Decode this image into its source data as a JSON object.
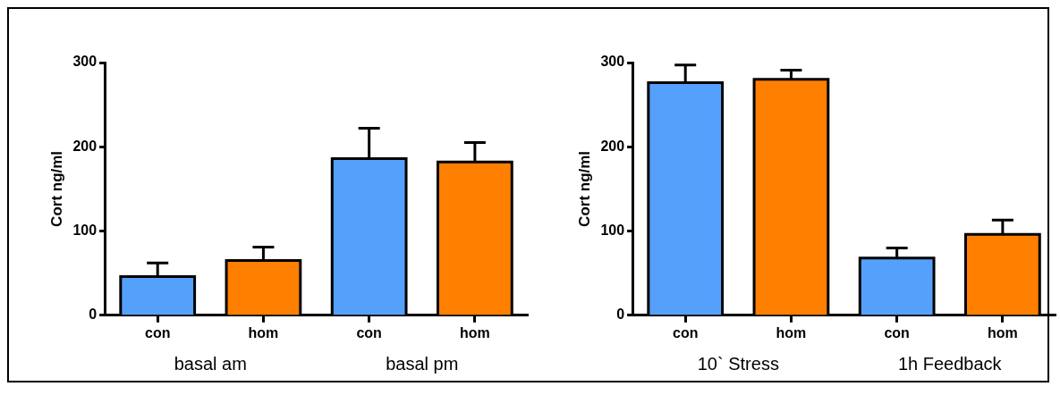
{
  "chart_data": [
    {
      "type": "bar",
      "ylabel": "Cort ng/ml",
      "categories": [
        "con",
        "hom",
        "con",
        "hom"
      ],
      "values": [
        46,
        65,
        186,
        182
      ],
      "colors": [
        "#55a0fb",
        "#ff7f00",
        "#55a0fb",
        "#ff7f00"
      ],
      "errors": [
        [
          46,
          62
        ],
        [
          65,
          81
        ],
        [
          186,
          222
        ],
        [
          182,
          205
        ]
      ],
      "ylim": [
        0,
        300
      ],
      "yticks": [
        0,
        100,
        200,
        300
      ],
      "grid": false,
      "legend": false,
      "annotations": [
        "basal am",
        "basal pm"
      ]
    },
    {
      "type": "bar",
      "ylabel": "Cort ng/ml",
      "categories": [
        "con",
        "hom",
        "con",
        "hom"
      ],
      "values": [
        276,
        280,
        68,
        96
      ],
      "colors": [
        "#55a0fb",
        "#ff7f00",
        "#55a0fb",
        "#ff7f00"
      ],
      "errors": [
        [
          276,
          297
        ],
        [
          280,
          291
        ],
        [
          68,
          80
        ],
        [
          96,
          113
        ]
      ],
      "ylim": [
        0,
        300
      ],
      "yticks": [
        0,
        100,
        200,
        300
      ],
      "grid": false,
      "legend": false,
      "annotations": [
        "10` Stress",
        "1h Feedback"
      ]
    }
  ]
}
